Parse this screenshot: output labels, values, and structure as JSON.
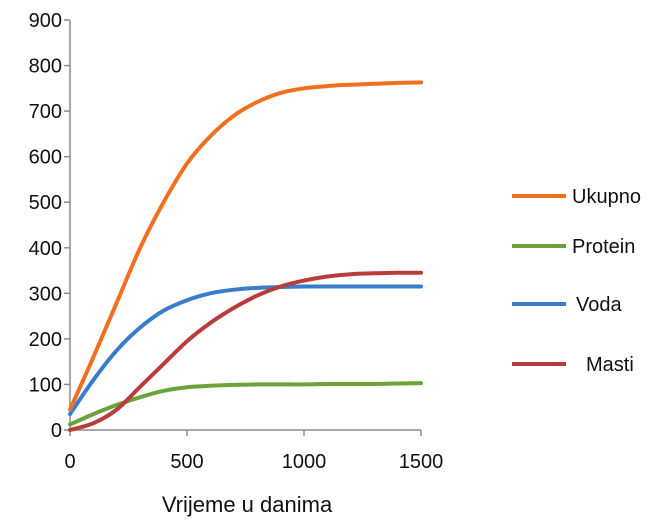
{
  "chart_data": {
    "type": "line",
    "title": "",
    "xlabel": "Vrijeme u danima",
    "ylabel": "",
    "xlim": [
      0,
      1500
    ],
    "ylim": [
      0,
      900
    ],
    "x_ticks": [
      "0",
      "500",
      "1000",
      "1500"
    ],
    "y_ticks": [
      "0",
      "100",
      "200",
      "300",
      "400",
      "500",
      "600",
      "700",
      "800",
      "900"
    ],
    "grid": false,
    "legend_position": "right",
    "x": [
      0,
      100,
      200,
      300,
      400,
      500,
      600,
      700,
      800,
      900,
      1000,
      1100,
      1200,
      1300,
      1400,
      1500
    ],
    "series": [
      {
        "name": "Ukupno",
        "color": "#f07020",
        "values": [
          45,
          160,
          280,
          400,
          500,
          585,
          645,
          690,
          720,
          740,
          750,
          755,
          758,
          760,
          762,
          763
        ]
      },
      {
        "name": "Protein",
        "color": "#6aa33a",
        "values": [
          12,
          35,
          55,
          72,
          86,
          94,
          97,
          99,
          100,
          100,
          100,
          101,
          101,
          101,
          102,
          103
        ]
      },
      {
        "name": "Voda",
        "color": "#3a7ccc",
        "values": [
          35,
          110,
          175,
          225,
          262,
          285,
          300,
          308,
          312,
          314,
          315,
          315,
          315,
          315,
          315,
          315
        ]
      },
      {
        "name": "Masti",
        "color": "#b83c3c",
        "values": [
          0,
          15,
          45,
          95,
          145,
          195,
          235,
          268,
          295,
          315,
          328,
          337,
          342,
          344,
          345,
          345
        ]
      }
    ]
  }
}
